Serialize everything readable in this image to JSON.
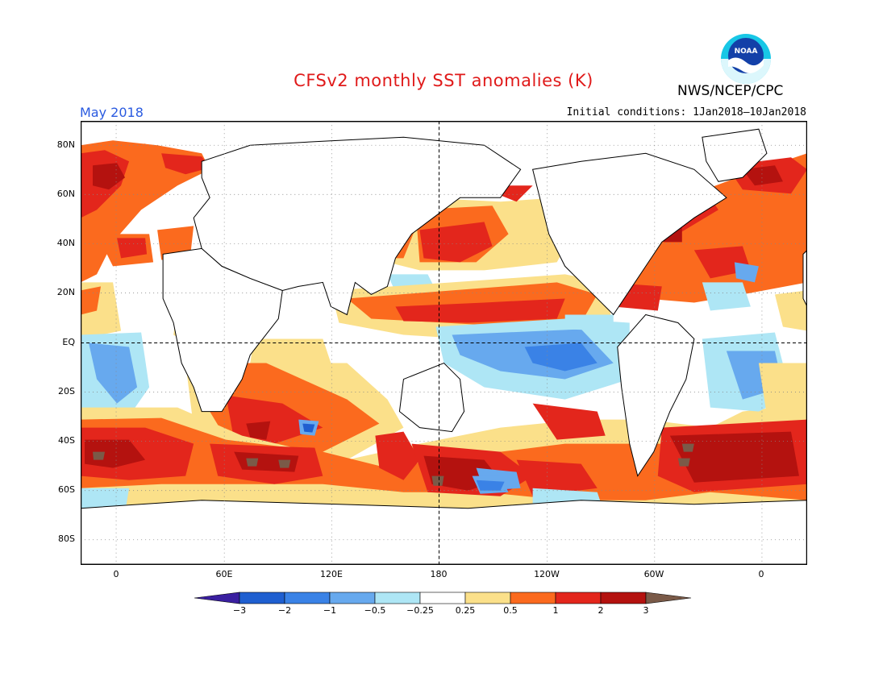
{
  "title": "CFSv2 monthly SST anomalies (K)",
  "org": "NWS/NCEP/CPC",
  "logo_text": "NOAA",
  "month": "May 2018",
  "init_conditions": "Initial conditions: 1Jan2018–10Jan2018",
  "lat_labels": [
    "80N",
    "60N",
    "40N",
    "20N",
    "EQ",
    "20S",
    "40S",
    "60S",
    "80S"
  ],
  "lon_labels": [
    "0",
    "60E",
    "120E",
    "180",
    "120W",
    "60W",
    "0"
  ],
  "colorbar": {
    "labels": [
      "−3",
      "−2",
      "−1",
      "−0.5",
      "−0.25",
      "0.25",
      "0.5",
      "1",
      "2",
      "3"
    ],
    "colors": [
      "#3a1fa0",
      "#1f5fd0",
      "#3a82e6",
      "#67a9ee",
      "#aee6f5",
      "#ffffff",
      "#fbe08a",
      "#fb6a1e",
      "#e3261c",
      "#b4120f",
      "#7a5a48"
    ]
  },
  "palette": {
    "c3": "#b4120f",
    "c2": "#e3261c",
    "c1": "#fb6a1e",
    "c05": "#fbe08a",
    "n025": "#aee6f5",
    "n05": "#67a9ee",
    "n1": "#3a82e6",
    "n2": "#1f5fd0",
    "brown": "#7a5a48"
  }
}
